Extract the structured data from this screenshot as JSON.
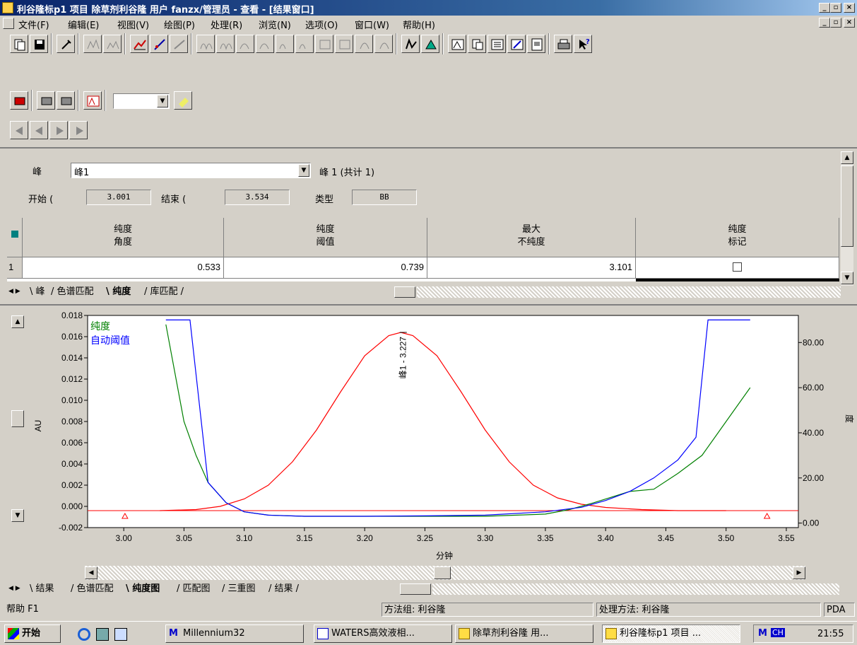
{
  "window": {
    "title": "利谷隆标p1 项目 除草剂利谷隆 用户 fanzx/管理员 - 查看 - [结果窗口]"
  },
  "menu": [
    "文件(F)",
    "编辑(E)",
    "视图(V)",
    "绘图(P)",
    "处理(R)",
    "浏览(N)",
    "选项(O)",
    "窗口(W)",
    "帮助(H)"
  ],
  "peak_panel": {
    "peak_label": "峰",
    "peak_select": "峰1",
    "peak_count": "峰 1 (共计 1)",
    "start_label": "开始 (",
    "start_value": "3.001",
    "end_label": "结束 (",
    "end_value": "3.534",
    "type_label": "类型",
    "type_value": "BB"
  },
  "table": {
    "headers": [
      {
        "line1": "纯度",
        "line2": "角度"
      },
      {
        "line1": "纯度",
        "line2": "阈值"
      },
      {
        "line1": "最大",
        "line2": "不纯度"
      },
      {
        "line1": "纯度",
        "line2": "标记"
      }
    ],
    "rows": [
      {
        "index": "1",
        "purity_angle": "0.533",
        "purity_threshold": "0.739",
        "max_impurity": "3.101",
        "purity_flag": ""
      }
    ]
  },
  "upper_tabs": [
    "峰",
    "色谱匹配",
    "纯度",
    "库匹配"
  ],
  "lower_tabs": [
    "结果",
    "色谱匹配",
    "纯度图",
    "匹配图",
    "三重图",
    "结果"
  ],
  "chart_data": {
    "type": "line",
    "xlabel": "分钟",
    "ylabel": "AU",
    "y2label": "度",
    "xlim": [
      2.97,
      3.56
    ],
    "ylim": [
      -0.002,
      0.018
    ],
    "y2lim": [
      -2,
      92
    ],
    "x_ticks": [
      "3.00",
      "3.05",
      "3.10",
      "3.15",
      "3.20",
      "3.25",
      "3.30",
      "3.35",
      "3.40",
      "3.45",
      "3.50",
      "3.55"
    ],
    "y_ticks": [
      "-0.002",
      "0.000",
      "0.002",
      "0.004",
      "0.006",
      "0.008",
      "0.010",
      "0.012",
      "0.014",
      "0.016",
      "0.018"
    ],
    "y2_ticks": [
      "0.00",
      "20.00",
      "40.00",
      "60.00",
      "80.00"
    ],
    "legend": [
      "纯度",
      "自动阈值"
    ],
    "peak_annotation": "峰1 - 3.227",
    "start_marker_x": 3.001,
    "end_marker_x": 3.534,
    "series": [
      {
        "name": "AU",
        "axis": "left",
        "color": "#ff0000",
        "x": [
          3.03,
          3.06,
          3.08,
          3.1,
          3.12,
          3.14,
          3.16,
          3.18,
          3.2,
          3.22,
          3.23,
          3.24,
          3.26,
          3.28,
          3.3,
          3.32,
          3.34,
          3.36,
          3.38,
          3.4,
          3.43,
          3.46,
          3.5
        ],
        "y": [
          -0.0004,
          -0.0003,
          0.0,
          0.0007,
          0.002,
          0.0042,
          0.0072,
          0.0108,
          0.0142,
          0.0161,
          0.0164,
          0.0161,
          0.0142,
          0.0108,
          0.0072,
          0.0042,
          0.002,
          0.0008,
          0.0002,
          -0.0001,
          -0.0003,
          -0.0004,
          -0.0004
        ]
      },
      {
        "name": "纯度",
        "axis": "right",
        "color": "#008000",
        "x": [
          3.035,
          3.05,
          3.06,
          3.07,
          3.085,
          3.1,
          3.12,
          3.15,
          3.2,
          3.25,
          3.3,
          3.35,
          3.37,
          3.39,
          3.42,
          3.44,
          3.46,
          3.48,
          3.5,
          3.52
        ],
        "y": [
          88,
          45,
          30,
          18,
          9,
          5,
          3.5,
          3,
          3,
          3,
          3,
          4,
          6,
          9,
          14,
          15,
          22,
          30,
          45,
          60
        ]
      },
      {
        "name": "自动阈值",
        "axis": "right",
        "color": "#0000ff",
        "x": [
          3.035,
          3.055,
          3.07,
          3.085,
          3.1,
          3.12,
          3.15,
          3.2,
          3.25,
          3.3,
          3.35,
          3.38,
          3.4,
          3.42,
          3.44,
          3.46,
          3.475,
          3.485,
          3.52
        ],
        "y": [
          90,
          90,
          18,
          9,
          5,
          3.5,
          3,
          3,
          3.2,
          3.5,
          5,
          7,
          10,
          14,
          20,
          28,
          38,
          90,
          90
        ]
      }
    ],
    "baseline": {
      "name": "baseline",
      "axis": "left",
      "color": "#ff0000",
      "y": -0.0004
    }
  },
  "status": {
    "help": "帮助 F1",
    "method_group": "方法组: 利谷隆",
    "process_method": "处理方法: 利谷隆",
    "mode": "PDA"
  },
  "taskbar": {
    "start": "开始",
    "tasks": [
      "Millennium32",
      "WATERS高效液相...",
      "除草剂利谷隆 用...",
      "利谷隆标p1 项目 ..."
    ],
    "tray_ime": "CH",
    "clock": "21:55"
  }
}
